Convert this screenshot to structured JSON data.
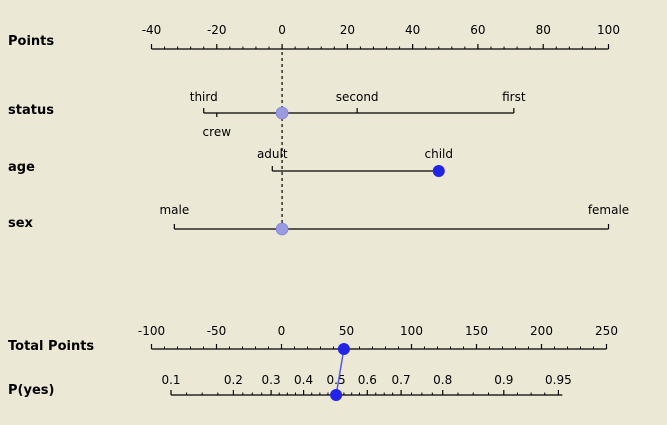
{
  "chart_data": {
    "type": "nomogram",
    "points_axis": {
      "label": "Points",
      "ticks": [
        -40,
        -20,
        0,
        20,
        40,
        60,
        80,
        100
      ],
      "range": [
        -40,
        100
      ]
    },
    "variables": [
      {
        "name": "status",
        "levels": [
          {
            "label": "third",
            "points": -24
          },
          {
            "label": "crew",
            "points": -20
          },
          {
            "label": "second",
            "points": 23
          },
          {
            "label": "first",
            "points": 71
          }
        ],
        "selected_points": 0,
        "selected_style": "average"
      },
      {
        "name": "age",
        "levels": [
          {
            "label": "adult",
            "points": -3
          },
          {
            "label": "child",
            "points": 48
          }
        ],
        "selected_points": 48,
        "selected_style": "selected"
      },
      {
        "name": "sex",
        "levels": [
          {
            "label": "male",
            "points": -33
          },
          {
            "label": "female",
            "points": 100
          }
        ],
        "selected_points": 0,
        "selected_style": "average"
      }
    ],
    "total_points_axis": {
      "label": "Total Points",
      "ticks": [
        -100,
        -50,
        0,
        50,
        100,
        150,
        200,
        250
      ],
      "range": [
        -100,
        250
      ],
      "marker_value": 48
    },
    "probability_axis": {
      "label": "P(yes)",
      "ticks": [
        {
          "label": "0.1",
          "total_points": -85
        },
        {
          "label": "0.2",
          "total_points": -37
        },
        {
          "label": "0.3",
          "total_points": -8
        },
        {
          "label": "0.4",
          "total_points": 17
        },
        {
          "label": "0.5",
          "total_points": 42
        },
        {
          "label": "0.6",
          "total_points": 66
        },
        {
          "label": "0.7",
          "total_points": 92
        },
        {
          "label": "0.8",
          "total_points": 124
        },
        {
          "label": "0.9",
          "total_points": 171
        },
        {
          "label": "0.95",
          "total_points": 213
        }
      ],
      "line_range": [
        -85,
        216
      ],
      "marker_value": 0.5
    }
  },
  "colors": {
    "background": "#ebe9d6",
    "selected_marker": "#2323e6",
    "average_marker": "#9a9ae0",
    "connector": "#5a5ae6"
  }
}
